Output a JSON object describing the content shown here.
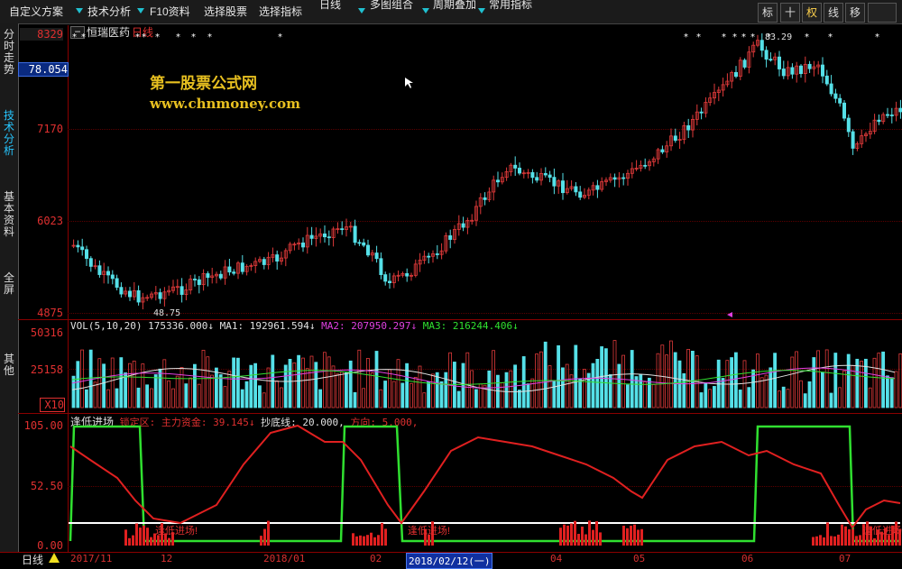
{
  "toolbar": {
    "items": [
      "自定义方案",
      "技术分析",
      "F10资料",
      "选择股票",
      "选择指标",
      "日线",
      "多图组合",
      "周期叠加",
      "常用指标"
    ],
    "right_buttons": [
      "标",
      "十",
      "权",
      "线",
      "移"
    ]
  },
  "sidebar": {
    "tabs": [
      "分时走势",
      "技术分析",
      "基本资料",
      "全屏",
      "其他"
    ]
  },
  "stock": {
    "name": "恒瑞医药",
    "period": "日线"
  },
  "watermark": {
    "line1": "第一股票公式网",
    "line2": "www.chnmoney.com"
  },
  "price_axis": {
    "top_value": "8329",
    "cursor_value": "78.054",
    "labels": [
      "7170",
      "6023",
      "4875"
    ]
  },
  "price_annotations": {
    "high": "83.29",
    "low": "48.75"
  },
  "vol_panel": {
    "title": "VOL(5,10,20)",
    "values": [
      {
        "label": "175336.000↓",
        "color": "#e0e0e0"
      },
      {
        "label": "MA1: 192961.594↓",
        "color": "#e0e0e0"
      },
      {
        "label": "MA2: 207950.297↓",
        "color": "#e040e0"
      },
      {
        "label": "MA3: 216244.406↓",
        "color": "#30e030"
      }
    ],
    "axis": [
      "50316",
      "25158",
      "X10"
    ]
  },
  "indicator_panel": {
    "name": "逢低进场",
    "legend": [
      {
        "label": "锁定区: ",
        "color": "#e03030"
      },
      {
        "label": "主力资金: 39.145↓",
        "color": "#e03030"
      },
      {
        "label": "抄底线: 20.000,",
        "color": "#e0e0e0"
      },
      {
        "label": "方向: 5.000,",
        "color": "#e03030"
      }
    ],
    "axis": [
      "105.00",
      "52.50",
      "0.00"
    ],
    "signal_text": "逢低进场!"
  },
  "bottom": {
    "period_tab": "日线",
    "dates": [
      "2017/11",
      "12",
      "2018/01",
      "02",
      "2018/02/12(一)",
      "04",
      "05",
      "06",
      "07"
    ]
  },
  "colors": {
    "up": "#e03a3a",
    "down": "#55e0e8",
    "green": "#30e030",
    "white": "#ffffff",
    "red": "#e02020",
    "accent": "#27c6ff"
  }
}
